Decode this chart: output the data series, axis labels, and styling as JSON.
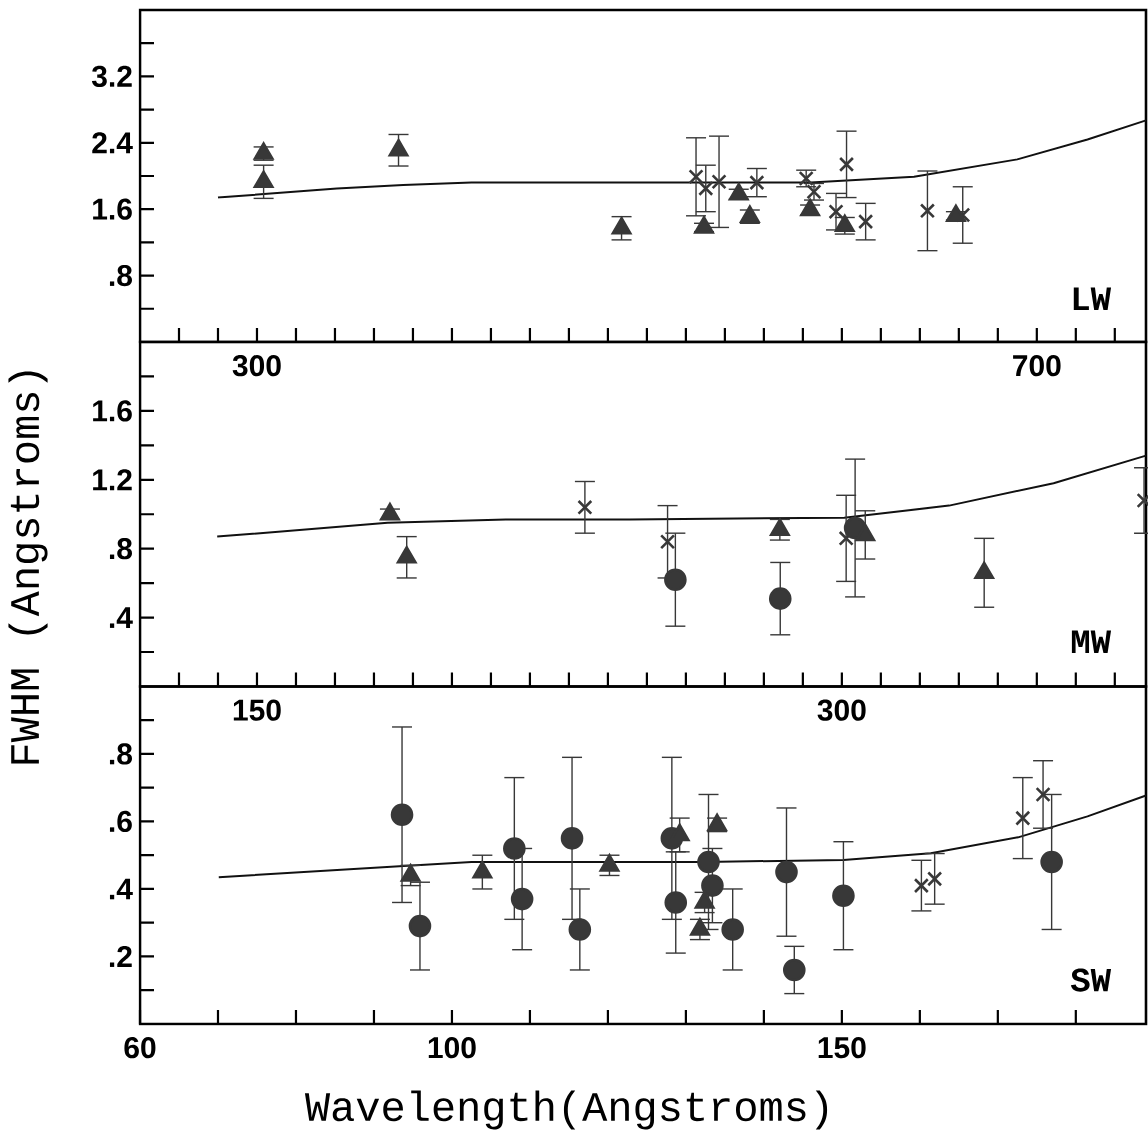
{
  "chart_data": [
    {
      "type": "scatter",
      "annotations": [
        "LW"
      ],
      "xlim": [
        240,
        756
      ],
      "ylim": [
        0,
        4
      ],
      "xticks": [
        {
          "value": 260,
          "label": null
        },
        {
          "value": 280,
          "label": null
        },
        300,
        {
          "value": 320,
          "label": null
        },
        {
          "value": 340,
          "label": null
        },
        {
          "value": 360,
          "label": null
        },
        {
          "value": 380,
          "label": null
        },
        {
          "value": 400,
          "label": null
        },
        {
          "value": 420,
          "label": null
        },
        {
          "value": 440,
          "label": null
        },
        {
          "value": 460,
          "label": null
        },
        {
          "value": 480,
          "label": null
        },
        {
          "value": 500,
          "label": null
        },
        {
          "value": 520,
          "label": null
        },
        {
          "value": 540,
          "label": null
        },
        {
          "value": 560,
          "label": null
        },
        {
          "value": 580,
          "label": null
        },
        {
          "value": 600,
          "label": null
        },
        {
          "value": 620,
          "label": null
        },
        {
          "value": 640,
          "label": null
        },
        {
          "value": 660,
          "label": null
        },
        {
          "value": 680,
          "label": null
        },
        700,
        {
          "value": 720,
          "label": null
        },
        {
          "value": 740,
          "label": null
        }
      ],
      "yticks": [
        {
          "value": 0.4,
          "label": null
        },
        {
          "value": 0.8,
          "label": ".8"
        },
        {
          "value": 1.2,
          "label": null
        },
        1.6,
        {
          "value": 2.0,
          "label": null
        },
        2.4,
        {
          "value": 2.8,
          "label": null
        },
        3.2,
        {
          "value": 3.6,
          "label": null
        }
      ],
      "series": [
        {
          "type": "scatter",
          "marker": "triangle",
          "color": "#383838",
          "x": [
            303.4,
            303.4,
            372.6,
            487,
            529.3,
            547.1,
            552.8,
            583.7,
            601.5,
            658.5
          ],
          "values": [
            2.27,
            1.93,
            2.31,
            1.37,
            1.38,
            1.78,
            1.51,
            1.59,
            1.4,
            1.52
          ],
          "errors": [
            0.08,
            0.2,
            0.19,
            0.14,
            0.05,
            0.06,
            0.08,
            0.06,
            0.1,
            0.05
          ]
        },
        {
          "type": "scatter",
          "marker": "cross",
          "color": "#383838",
          "x": [
            525.2,
            530.2,
            537,
            556.4,
            581.7,
            585.7,
            597,
            602.4,
            612.2,
            643.9,
            662
          ],
          "values": [
            1.99,
            1.85,
            1.93,
            1.92,
            1.97,
            1.81,
            1.57,
            2.14,
            1.45,
            1.58,
            1.53
          ],
          "errors": [
            0.47,
            0.28,
            0.55,
            0.17,
            0.1,
            0.1,
            0.22,
            0.4,
            0.22,
            0.48,
            0.34
          ]
        },
        {
          "type": "line",
          "marker": "none",
          "color": "#111111",
          "x": [
            280,
            341,
            375,
            410,
            480,
            540,
            584,
            637,
            690,
            726,
            756
          ],
          "values": [
            1.74,
            1.85,
            1.89,
            1.92,
            1.92,
            1.92,
            1.92,
            1.99,
            2.2,
            2.44,
            2.67
          ]
        }
      ]
    },
    {
      "type": "scatter",
      "annotations": [
        "MW"
      ],
      "ylabel": "FWHM (Angstroms)",
      "xlim": [
        120,
        378
      ],
      "ylim": [
        0,
        2
      ],
      "xticks": [
        {
          "value": 130,
          "label": null
        },
        {
          "value": 140,
          "label": null
        },
        150,
        {
          "value": 160,
          "label": null
        },
        {
          "value": 170,
          "label": null
        },
        {
          "value": 180,
          "label": null
        },
        {
          "value": 190,
          "label": null
        },
        {
          "value": 200,
          "label": null
        },
        {
          "value": 210,
          "label": null
        },
        {
          "value": 220,
          "label": null
        },
        {
          "value": 230,
          "label": null
        },
        {
          "value": 240,
          "label": null
        },
        {
          "value": 250,
          "label": null
        },
        {
          "value": 260,
          "label": null
        },
        {
          "value": 270,
          "label": null
        },
        {
          "value": 280,
          "label": null
        },
        {
          "value": 290,
          "label": null
        },
        300,
        {
          "value": 310,
          "label": null
        },
        {
          "value": 320,
          "label": null
        },
        {
          "value": 330,
          "label": null
        },
        {
          "value": 340,
          "label": null
        },
        {
          "value": 350,
          "label": null
        },
        {
          "value": 360,
          "label": null
        },
        {
          "value": 370,
          "label": null
        }
      ],
      "yticks": [
        {
          "value": 0.2,
          "label": null
        },
        {
          "value": 0.4,
          "label": ".4"
        },
        {
          "value": 0.6,
          "label": null
        },
        {
          "value": 0.8,
          "label": ".8"
        },
        {
          "value": 1.0,
          "label": null
        },
        1.2,
        {
          "value": 1.4,
          "label": null
        },
        1.6,
        {
          "value": 1.8,
          "label": null
        }
      ],
      "series": [
        {
          "type": "scatter",
          "marker": "triangle",
          "color": "#383838",
          "x": [
            184.1,
            188.4,
            284.1,
            306,
            336.5
          ],
          "values": [
            1.0,
            0.75,
            0.91,
            0.88,
            0.66
          ],
          "errors": [
            0.03,
            0.12,
            0.06,
            0.14,
            0.2
          ]
        },
        {
          "type": "scatter",
          "marker": "circle",
          "color": "#383838",
          "x": [
            257.3,
            284.2,
            303.4
          ],
          "values": [
            0.62,
            0.51,
            0.92
          ],
          "errors": [
            0.27,
            0.21,
            0.4
          ]
        },
        {
          "type": "scatter",
          "marker": "cross",
          "color": "#383838",
          "x": [
            234.1,
            255.3,
            301.1,
            377.5
          ],
          "values": [
            1.04,
            0.84,
            0.86,
            1.08
          ],
          "errors": [
            0.15,
            0.21,
            0.25,
            0.19
          ]
        },
        {
          "type": "line",
          "marker": "none",
          "color": "#111111",
          "x": [
            139.8,
            183.5,
            213.8,
            245.6,
            300.6,
            327.5,
            354.3,
            378
          ],
          "values": [
            0.87,
            0.95,
            0.97,
            0.97,
            0.98,
            1.05,
            1.18,
            1.34
          ]
        }
      ]
    },
    {
      "type": "scatter",
      "annotations": [
        "SW"
      ],
      "xlabel": "Wavelength(Angstroms)",
      "xlim": [
        60,
        189
      ],
      "ylim": [
        0,
        1
      ],
      "xticks": [
        60,
        {
          "value": 70,
          "label": null
        },
        {
          "value": 80,
          "label": null
        },
        {
          "value": 90,
          "label": null
        },
        100,
        {
          "value": 110,
          "label": null
        },
        {
          "value": 120,
          "label": null
        },
        {
          "value": 130,
          "label": null
        },
        {
          "value": 140,
          "label": null
        },
        150,
        {
          "value": 160,
          "label": null
        },
        {
          "value": 170,
          "label": null
        },
        {
          "value": 180,
          "label": null
        }
      ],
      "yticks": [
        {
          "value": 0.1,
          "label": null
        },
        {
          "value": 0.2,
          "label": ".2"
        },
        {
          "value": 0.3,
          "label": null
        },
        {
          "value": 0.4,
          "label": ".4"
        },
        {
          "value": 0.5,
          "label": null
        },
        {
          "value": 0.6,
          "label": ".6"
        },
        {
          "value": 0.7,
          "label": null
        },
        {
          "value": 0.8,
          "label": ".8"
        },
        {
          "value": 0.9,
          "label": null
        }
      ],
      "series": [
        {
          "type": "scatter",
          "marker": "triangle",
          "color": "#383838",
          "x": [
            94.7,
            103.9,
            120.2,
            129.2,
            134.0,
            132.4,
            131.8
          ],
          "values": [
            0.44,
            0.45,
            0.47,
            0.56,
            0.59,
            0.36,
            0.28
          ],
          "errors": [
            0.03,
            0.05,
            0.03,
            0.05,
            0.02,
            0.03,
            0.03
          ]
        },
        {
          "type": "scatter",
          "marker": "circle",
          "color": "#383838",
          "x": [
            93.6,
            95.9,
            108.0,
            109.0,
            115.4,
            116.4,
            128.2,
            128.7,
            132.9,
            133.4,
            136,
            142.9,
            143.9,
            150.2,
            176.9
          ],
          "values": [
            0.62,
            0.29,
            0.52,
            0.37,
            0.55,
            0.28,
            0.55,
            0.36,
            0.48,
            0.41,
            0.28,
            0.45,
            0.16,
            0.38,
            0.48
          ],
          "errors": [
            0.26,
            0.13,
            0.21,
            0.15,
            0.24,
            0.12,
            0.24,
            0.15,
            0.2,
            0.11,
            0.12,
            0.19,
            0.07,
            0.16,
            0.2
          ]
        },
        {
          "type": "scatter",
          "marker": "cross",
          "color": "#383838",
          "x": [
            160.2,
            161.9,
            173.2,
            175.8
          ],
          "values": [
            0.41,
            0.43,
            0.61,
            0.68
          ],
          "errors": [
            0.075,
            0.075,
            0.12,
            0.1
          ]
        },
        {
          "type": "line",
          "marker": "none",
          "color": "#111111",
          "x": [
            70.1,
            93.8,
            102.5,
            132.4,
            150.2,
            161.4,
            172.6,
            181.5,
            189
          ],
          "values": [
            0.435,
            0.468,
            0.48,
            0.48,
            0.486,
            0.506,
            0.553,
            0.615,
            0.677
          ]
        }
      ]
    }
  ]
}
